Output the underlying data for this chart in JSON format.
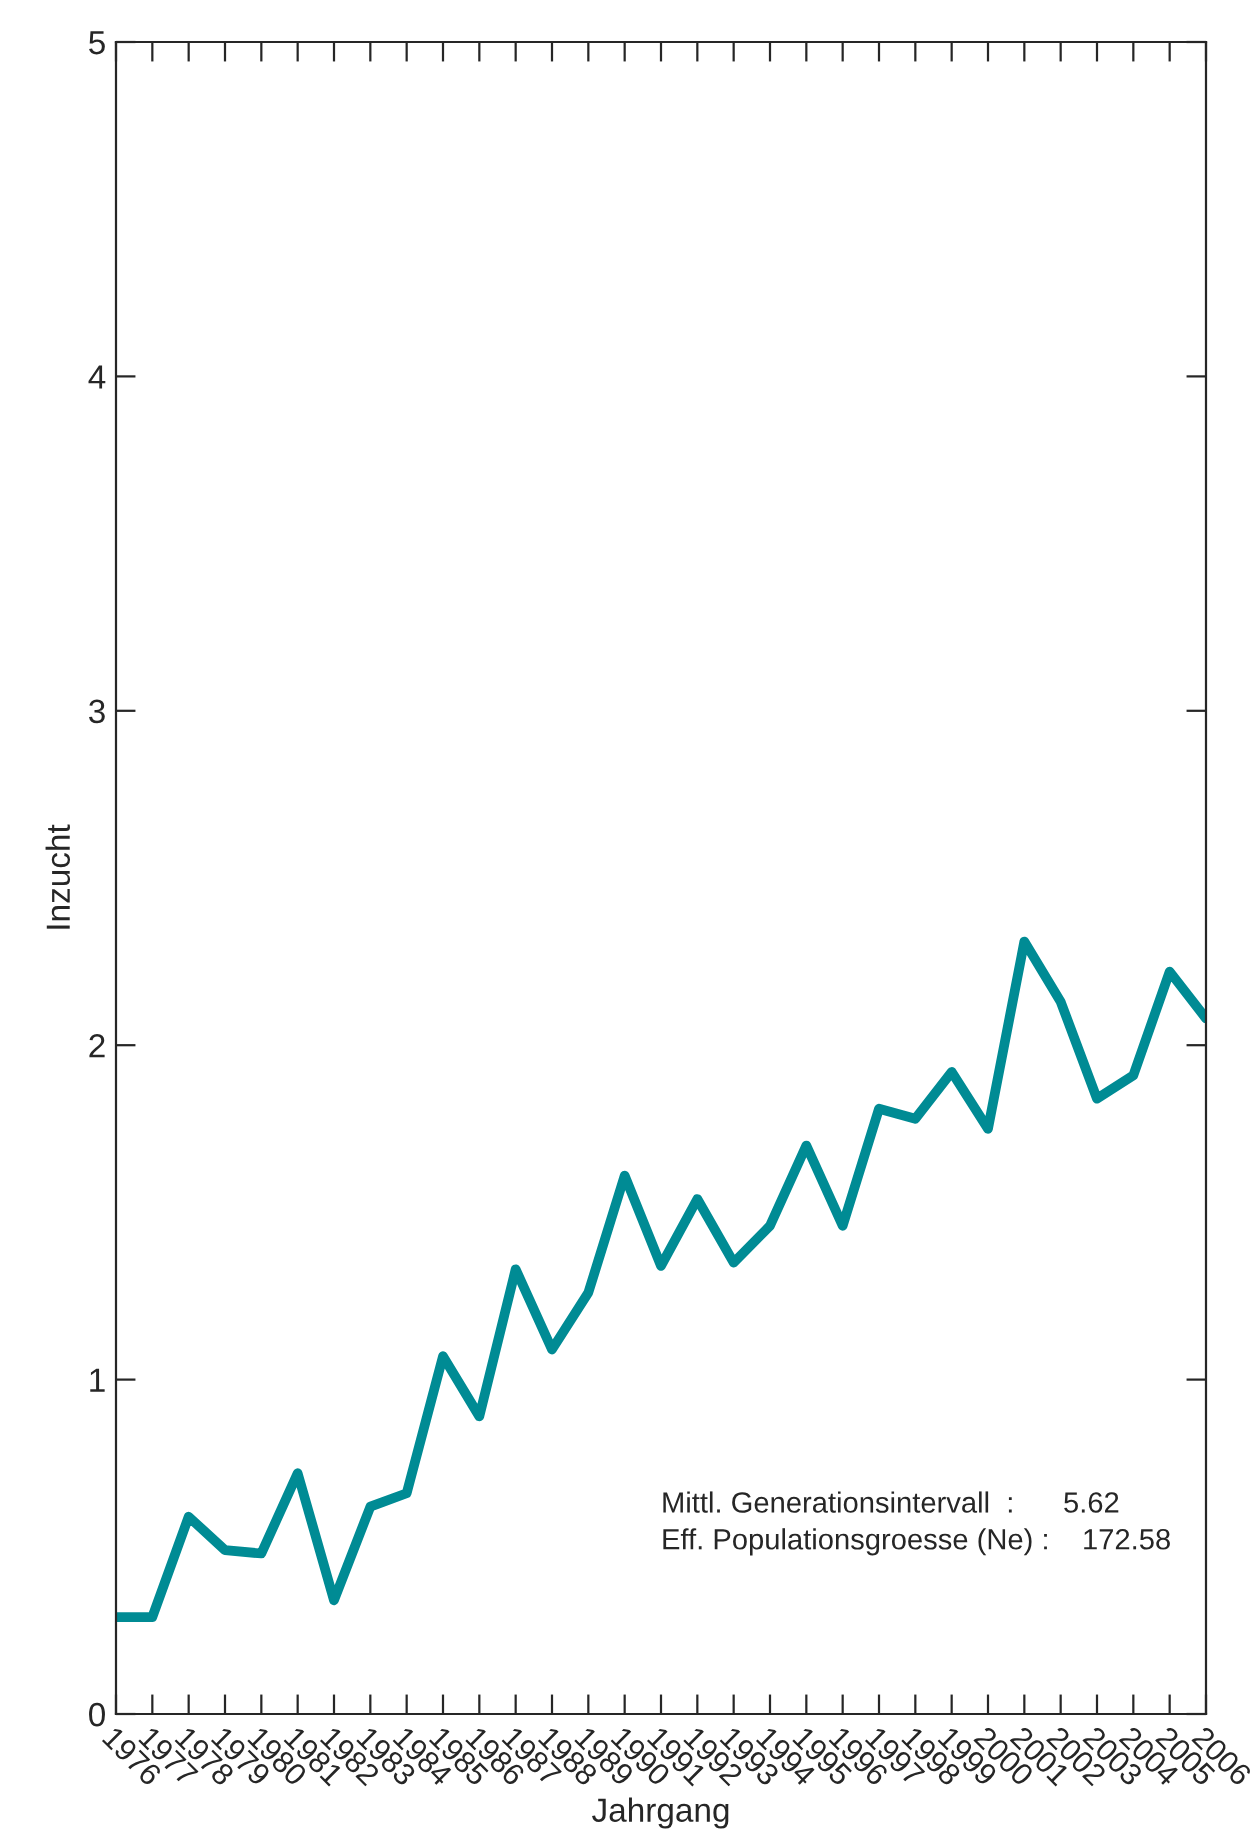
{
  "chart_data": {
    "type": "line",
    "xlabel": "Jahrgang",
    "ylabel": "Inzucht",
    "categories": [
      "1976",
      "1977",
      "1978",
      "1979",
      "1980",
      "1981",
      "1982",
      "1983",
      "1984",
      "1985",
      "1986",
      "1987",
      "1988",
      "1989",
      "1990",
      "1991",
      "1992",
      "1993",
      "1994",
      "1995",
      "1996",
      "1997",
      "1998",
      "1999",
      "2000",
      "2001",
      "2002",
      "2003",
      "2004",
      "2005",
      "2006"
    ],
    "series": [
      {
        "color": "#008b94",
        "values": [
          0.29,
          0.29,
          0.59,
          0.49,
          0.48,
          0.72,
          0.34,
          0.62,
          0.66,
          1.07,
          0.89,
          1.33,
          1.09,
          1.26,
          1.61,
          1.34,
          1.54,
          1.35,
          1.46,
          1.7,
          1.46,
          1.81,
          1.78,
          1.92,
          1.75,
          2.31,
          2.13,
          1.84,
          1.91,
          2.22,
          2.08
        ]
      }
    ],
    "ylim": [
      0,
      5
    ],
    "yticks": [
      0,
      1,
      2,
      3,
      4,
      5
    ],
    "grid": false,
    "legend": false,
    "marker": "none",
    "line_style": "solid",
    "annotations": [
      "Mittl. Generationsintervall  :      5.62",
      "Eff. Populationsgroesse (Ne) :    172.58"
    ]
  }
}
